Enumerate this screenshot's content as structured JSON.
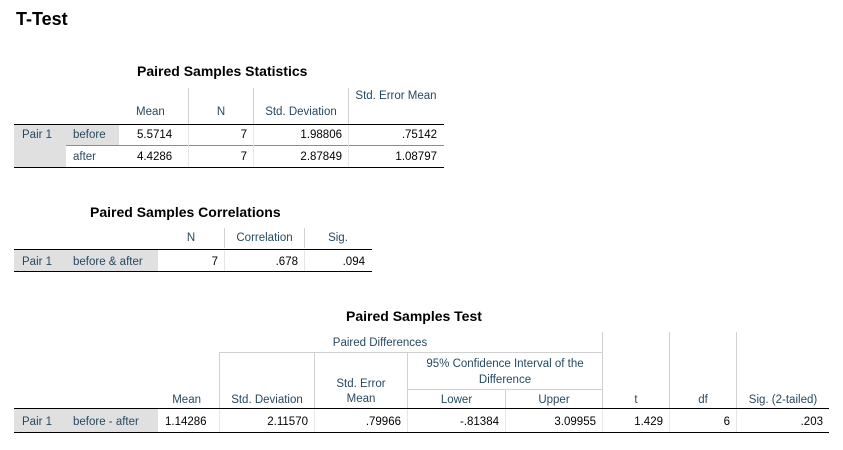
{
  "page_title": "T-Test",
  "stats": {
    "title": "Paired Samples Statistics",
    "headers": [
      "Mean",
      "N",
      "Std. Deviation",
      "Std. Error Mean"
    ],
    "group": "Pair 1",
    "rows": [
      {
        "label": "before",
        "values": [
          "5.5714",
          "7",
          "1.98806",
          ".75142"
        ]
      },
      {
        "label": "after",
        "values": [
          "4.4286",
          "7",
          "2.87849",
          "1.08797"
        ]
      }
    ]
  },
  "corr": {
    "title": "Paired Samples Correlations",
    "headers": [
      "N",
      "Correlation",
      "Sig."
    ],
    "group": "Pair 1",
    "rows": [
      {
        "label": "before & after",
        "values": [
          "7",
          ".678",
          ".094"
        ]
      }
    ]
  },
  "test": {
    "title": "Paired Samples Test",
    "super_header": "Paired Differences",
    "ci_header": "95% Confidence Interval of the Difference",
    "headers": [
      "Mean",
      "Std. Deviation",
      "Std. Error Mean",
      "Lower",
      "Upper",
      "t",
      "df",
      "Sig. (2-tailed)"
    ],
    "group": "Pair 1",
    "rows": [
      {
        "label": "before - after",
        "values": [
          "1.14286",
          "2.11570",
          ".79966",
          "-.81384",
          "3.09955",
          "1.429",
          "6",
          ".203"
        ]
      }
    ]
  }
}
